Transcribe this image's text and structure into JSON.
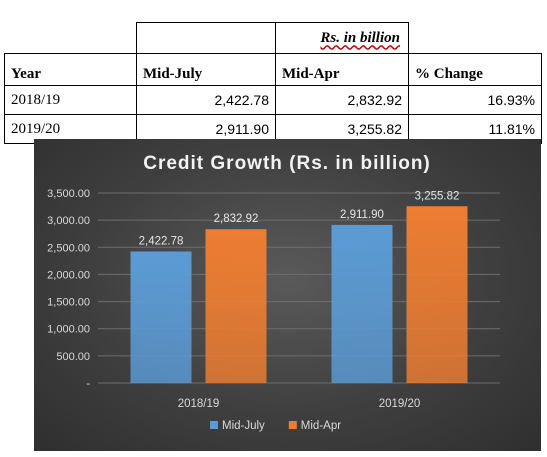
{
  "table": {
    "unit_label": "Rs. in billion",
    "headers": [
      "Year",
      "Mid-July",
      "Mid-Apr",
      "% Change"
    ],
    "rows": [
      [
        "2018/19",
        "2,422.78",
        "2,832.92",
        "16.93%"
      ],
      [
        "2019/20",
        "2,911.90",
        "3,255.82",
        "11.81%"
      ]
    ]
  },
  "chart_data": {
    "type": "bar",
    "title": "Credit Growth (Rs. in billion)",
    "categories": [
      "2018/19",
      "2019/20"
    ],
    "series": [
      {
        "name": "Mid-July",
        "values": [
          2422.78,
          2911.9
        ],
        "labels": [
          "2,422.78",
          "2,911.90"
        ],
        "color": "#5b9bd5"
      },
      {
        "name": "Mid-Apr",
        "values": [
          2832.92,
          3255.82
        ],
        "labels": [
          "2,832.92",
          "3,255.82"
        ],
        "color": "#ed7d31"
      }
    ],
    "ylim": [
      0,
      3500
    ],
    "yticks": [
      0,
      500,
      1000,
      1500,
      2000,
      2500,
      3000,
      3500
    ],
    "ytick_labels": [
      "-",
      "500.00",
      "1,000.00",
      "1,500.00",
      "2,000.00",
      "2,500.00",
      "3,000.00",
      "3,500.00"
    ],
    "xlabel": "",
    "ylabel": "",
    "grid": true,
    "legend": "bottom",
    "background": "#404040"
  }
}
